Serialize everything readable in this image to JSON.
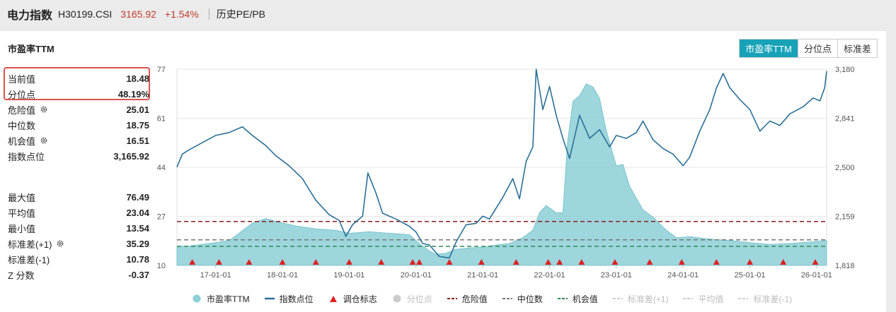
{
  "header": {
    "index_name": "电力指数",
    "index_code": "H30199.CSI",
    "price": "3165.92",
    "change": "+1.54%",
    "breadcrumb": "历史PE/PB"
  },
  "panel": {
    "title": "市盈率TTM",
    "tabs": [
      {
        "label": "市盈率TTM",
        "active": true
      },
      {
        "label": "分位点",
        "active": false
      },
      {
        "label": "标准差",
        "active": false
      }
    ]
  },
  "stats": {
    "top": [
      {
        "label": "当前值",
        "value": "18.48",
        "icon": ""
      },
      {
        "label": "分位点",
        "value": "48.19%",
        "icon": ""
      },
      {
        "label": "危险值",
        "value": "25.01",
        "icon": "gear-icon"
      },
      {
        "label": "中位数",
        "value": "18.75",
        "icon": ""
      },
      {
        "label": "机会值",
        "value": "16.51",
        "icon": "gear-icon"
      },
      {
        "label": "指数点位",
        "value": "3,165.92",
        "icon": ""
      }
    ],
    "bottom": [
      {
        "label": "最大值",
        "value": "76.49",
        "icon": ""
      },
      {
        "label": "平均值",
        "value": "23.04",
        "icon": ""
      },
      {
        "label": "最小值",
        "value": "13.54",
        "icon": ""
      },
      {
        "label": "标准差(+1)",
        "value": "35.29",
        "icon": "gear-icon"
      },
      {
        "label": "标准差(-1)",
        "value": "10.78",
        "icon": ""
      },
      {
        "label": "Z 分数",
        "value": "-0.37",
        "icon": ""
      }
    ]
  },
  "chart_data": {
    "type": "area",
    "left_axis": {
      "min": 10,
      "max": 77,
      "ticks": [
        "77",
        "61",
        "44",
        "27",
        "10"
      ]
    },
    "right_axis": {
      "min": 1818,
      "max": 3180,
      "ticks": [
        "3,180",
        "2,841",
        "2,500",
        "2,159",
        "1,818"
      ]
    },
    "x_range": [
      2016.42,
      2026.15
    ],
    "x_ticks": [
      {
        "x": 2017.0,
        "label": "17-01-01"
      },
      {
        "x": 2018.0,
        "label": "18-01-01"
      },
      {
        "x": 2019.0,
        "label": "19-01-01"
      },
      {
        "x": 2020.0,
        "label": "20-01-01"
      },
      {
        "x": 2021.0,
        "label": "21-01-01"
      },
      {
        "x": 2022.0,
        "label": "22-01-01"
      },
      {
        "x": 2023.0,
        "label": "23-01-01"
      },
      {
        "x": 2024.0,
        "label": "24-01-01"
      },
      {
        "x": 2025.0,
        "label": "25-01-01"
      },
      {
        "x": 2026.0,
        "label": "26-01-01"
      }
    ],
    "grid": true,
    "legend_position": "bottom",
    "pe_series": {
      "name": "市盈率TTM",
      "color": "#8ccfd6",
      "points": [
        [
          2016.42,
          16.5
        ],
        [
          2016.6,
          16.6
        ],
        [
          2016.8,
          17.2
        ],
        [
          2017.0,
          17.8
        ],
        [
          2017.2,
          18.5
        ],
        [
          2017.35,
          21.0
        ],
        [
          2017.55,
          24.5
        ],
        [
          2017.75,
          26.0
        ],
        [
          2017.95,
          24.8
        ],
        [
          2018.2,
          23.5
        ],
        [
          2018.5,
          22.5
        ],
        [
          2018.8,
          22.0
        ],
        [
          2019.0,
          21.0
        ],
        [
          2019.3,
          21.5
        ],
        [
          2019.6,
          21.0
        ],
        [
          2019.9,
          20.5
        ],
        [
          2020.05,
          17.5
        ],
        [
          2020.2,
          15.0
        ],
        [
          2020.3,
          13.8
        ],
        [
          2020.45,
          14.2
        ],
        [
          2020.6,
          15.5
        ],
        [
          2020.8,
          16.0
        ],
        [
          2021.0,
          16.2
        ],
        [
          2021.2,
          17.0
        ],
        [
          2021.4,
          17.5
        ],
        [
          2021.6,
          19.5
        ],
        [
          2021.75,
          22.0
        ],
        [
          2021.85,
          28.0
        ],
        [
          2021.95,
          30.5
        ],
        [
          2022.1,
          28.0
        ],
        [
          2022.2,
          28.0
        ],
        [
          2022.27,
          52.0
        ],
        [
          2022.35,
          66.0
        ],
        [
          2022.45,
          68.0
        ],
        [
          2022.55,
          72.0
        ],
        [
          2022.65,
          71.0
        ],
        [
          2022.75,
          67.0
        ],
        [
          2022.85,
          56.0
        ],
        [
          2023.0,
          44.0
        ],
        [
          2023.1,
          44.5
        ],
        [
          2023.2,
          37.0
        ],
        [
          2023.3,
          33.0
        ],
        [
          2023.4,
          29.0
        ],
        [
          2023.55,
          26.5
        ],
        [
          2023.75,
          22.0
        ],
        [
          2023.9,
          19.5
        ],
        [
          2024.1,
          19.8
        ],
        [
          2024.4,
          19.0
        ],
        [
          2024.7,
          18.5
        ],
        [
          2025.0,
          17.8
        ],
        [
          2025.3,
          17.2
        ],
        [
          2025.6,
          17.5
        ],
        [
          2025.9,
          18.0
        ],
        [
          2026.15,
          18.48
        ]
      ]
    },
    "index_series": {
      "name": "指数点位",
      "color": "#2a6f97",
      "points": [
        [
          2016.42,
          2500
        ],
        [
          2016.5,
          2590
        ],
        [
          2016.6,
          2620
        ],
        [
          2016.8,
          2670
        ],
        [
          2017.0,
          2720
        ],
        [
          2017.2,
          2740
        ],
        [
          2017.4,
          2780
        ],
        [
          2017.55,
          2720
        ],
        [
          2017.75,
          2650
        ],
        [
          2017.9,
          2580
        ],
        [
          2018.1,
          2510
        ],
        [
          2018.3,
          2420
        ],
        [
          2018.5,
          2270
        ],
        [
          2018.7,
          2170
        ],
        [
          2018.85,
          2130
        ],
        [
          2018.95,
          2020
        ],
        [
          2019.05,
          2100
        ],
        [
          2019.2,
          2160
        ],
        [
          2019.28,
          2460
        ],
        [
          2019.4,
          2320
        ],
        [
          2019.5,
          2180
        ],
        [
          2019.7,
          2140
        ],
        [
          2019.9,
          2090
        ],
        [
          2020.0,
          2050
        ],
        [
          2020.1,
          1970
        ],
        [
          2020.2,
          1960
        ],
        [
          2020.35,
          1880
        ],
        [
          2020.5,
          1870
        ],
        [
          2020.6,
          1980
        ],
        [
          2020.75,
          2100
        ],
        [
          2020.9,
          2110
        ],
        [
          2021.0,
          2160
        ],
        [
          2021.1,
          2140
        ],
        [
          2021.3,
          2290
        ],
        [
          2021.45,
          2420
        ],
        [
          2021.55,
          2280
        ],
        [
          2021.65,
          2540
        ],
        [
          2021.75,
          2640
        ],
        [
          2021.8,
          3180
        ],
        [
          2021.9,
          2900
        ],
        [
          2022.0,
          3060
        ],
        [
          2022.1,
          2860
        ],
        [
          2022.2,
          2700
        ],
        [
          2022.3,
          2560
        ],
        [
          2022.45,
          2860
        ],
        [
          2022.6,
          2700
        ],
        [
          2022.75,
          2760
        ],
        [
          2022.9,
          2640
        ],
        [
          2023.0,
          2720
        ],
        [
          2023.15,
          2700
        ],
        [
          2023.3,
          2740
        ],
        [
          2023.4,
          2820
        ],
        [
          2023.55,
          2690
        ],
        [
          2023.7,
          2630
        ],
        [
          2023.85,
          2590
        ],
        [
          2024.0,
          2510
        ],
        [
          2024.1,
          2570
        ],
        [
          2024.25,
          2750
        ],
        [
          2024.4,
          2900
        ],
        [
          2024.5,
          3050
        ],
        [
          2024.6,
          3150
        ],
        [
          2024.7,
          3050
        ],
        [
          2024.85,
          2970
        ],
        [
          2025.0,
          2900
        ],
        [
          2025.15,
          2750
        ],
        [
          2025.3,
          2820
        ],
        [
          2025.45,
          2790
        ],
        [
          2025.6,
          2870
        ],
        [
          2025.8,
          2920
        ],
        [
          2025.95,
          2980
        ],
        [
          2026.05,
          2960
        ],
        [
          2026.12,
          3050
        ],
        [
          2026.15,
          3166
        ]
      ]
    },
    "reference_lines": [
      {
        "name": "危险值",
        "value": 25.01,
        "color": "#8b1c1c",
        "visible": true
      },
      {
        "name": "中位数",
        "value": 18.75,
        "color": "#777777",
        "visible": true
      },
      {
        "name": "机会值",
        "value": 16.51,
        "color": "#2e8b57",
        "visible": true
      }
    ],
    "rebalance_markers": {
      "name": "调仓标志",
      "color": "#e02020",
      "x": [
        2016.65,
        2017.05,
        2017.5,
        2018.0,
        2018.5,
        2019.0,
        2019.48,
        2019.95,
        2020.05,
        2020.5,
        2020.98,
        2021.5,
        2021.98,
        2022.15,
        2022.48,
        2022.98,
        2023.5,
        2023.98,
        2024.5,
        2025.0,
        2025.5,
        2025.98
      ]
    },
    "legend": [
      {
        "label": "市盈率TTM",
        "marker": "circle",
        "color": "#8ccfd6",
        "enabled": true
      },
      {
        "label": "指数点位",
        "marker": "line",
        "color": "#2a6f97",
        "enabled": true
      },
      {
        "label": "调仓标志",
        "marker": "triangle",
        "color": "#e02020",
        "enabled": true
      },
      {
        "label": "分位点",
        "marker": "circle",
        "color": "#cccccc",
        "enabled": false
      },
      {
        "label": "危险值",
        "marker": "dash",
        "color": "#8b1c1c",
        "enabled": true
      },
      {
        "label": "中位数",
        "marker": "dash",
        "color": "#777777",
        "enabled": true
      },
      {
        "label": "机会值",
        "marker": "dash",
        "color": "#2e8b57",
        "enabled": true
      },
      {
        "label": "标准差(+1)",
        "marker": "dash",
        "color": "#cccccc",
        "enabled": false
      },
      {
        "label": "平均值",
        "marker": "dash",
        "color": "#cccccc",
        "enabled": false
      },
      {
        "label": "标准差(-1)",
        "marker": "dash",
        "color": "#cccccc",
        "enabled": false
      }
    ]
  }
}
